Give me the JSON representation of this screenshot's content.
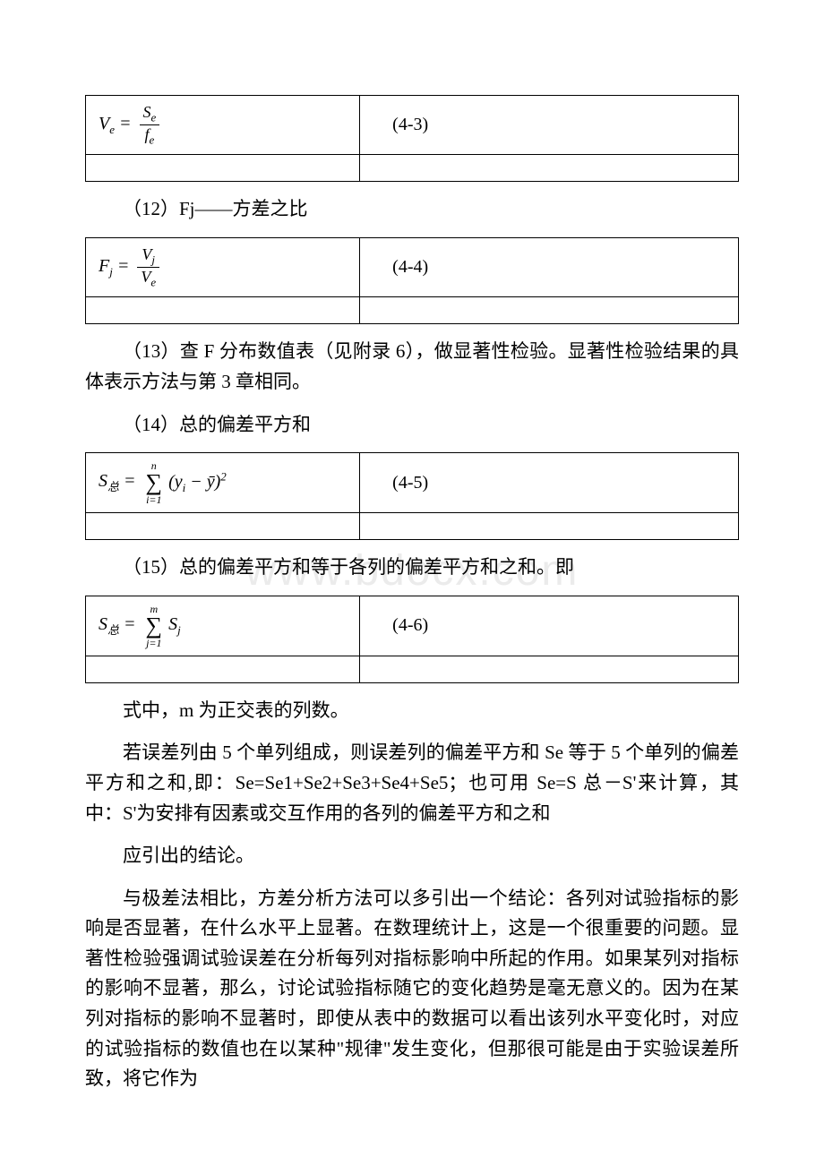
{
  "watermark_text": "www.bdocx.com",
  "watermark_color": "#ebebeb",
  "body_bg": "#ffffff",
  "text_color": "#000000",
  "border_color": "#000000",
  "body_fontsize": 21,
  "formula_fontsize": 20,
  "formulas": {
    "f43": {
      "lhs": "V",
      "lhs_sub": "e",
      "frac_num_main": "S",
      "frac_num_sub": "e",
      "frac_den_main": "f",
      "frac_den_sub": "e",
      "number": "(4-3)"
    },
    "f44": {
      "lhs": "F",
      "lhs_sub": "j",
      "frac_num_main": "V",
      "frac_num_sub": "j",
      "frac_den_main": "V",
      "frac_den_sub": "e",
      "number": "(4-4)"
    },
    "f45": {
      "lhs": "S",
      "lhs_sub": "总",
      "sum_top": "n",
      "sum_bottom": "i=1",
      "term": "(y",
      "term_sub": "i",
      "term_mid": " − ȳ)",
      "term_sup": "2",
      "number": "(4-5)"
    },
    "f46": {
      "lhs": "S",
      "lhs_sub": "总",
      "sum_top": "m",
      "sum_bottom": "j=1",
      "term": "S",
      "term_sub": "j",
      "number": "(4-6)"
    }
  },
  "paragraphs": {
    "p12": "（12）Fj——方差之比",
    "p13": "（13）查 F 分布数值表（见附录 6），做显著性检验。显著性检验结果的具体表示方法与第 3 章相同。",
    "p14": "（14）总的偏差平方和",
    "p15": "（15）总的偏差平方和等于各列的偏差平方和之和。即",
    "p16": "式中，m 为正交表的列数。",
    "p17": "若误差列由 5 个单列组成，则误差列的偏差平方和 Se 等于 5 个单列的偏差平方和之和,即：Se=Se1+Se2+Se3+Se4+Se5；也可用 Se=S 总－S'来计算，其中：S'为安排有因素或交互作用的各列的偏差平方和之和",
    "p18": "应引出的结论。",
    "p19": "与极差法相比，方差分析方法可以多引出一个结论：各列对试验指标的影响是否显著，在什么水平上显著。在数理统计上，这是一个很重要的问题。显著性检验强调试验误差在分析每列对指标影响中所起的作用。如果某列对指标的影响不显著，那么，讨论试验指标随它的变化趋势是毫无意义的。因为在某列对指标的影响不显著时，即使从表中的数据可以看出该列水平变化时，对应的试验指标的数值也在以某种\"规律\"发生变化，但那很可能是由于实验误差所致，将它作为"
  }
}
